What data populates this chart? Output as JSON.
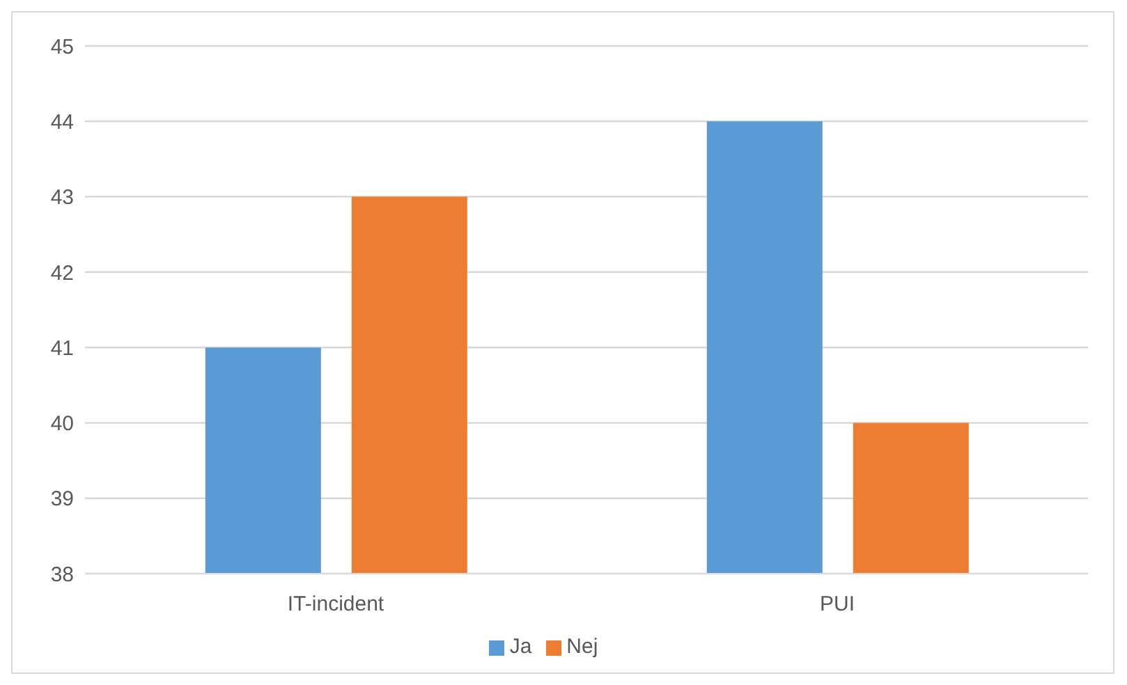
{
  "chart_data": {
    "type": "bar",
    "categories": [
      "IT-incident",
      "PUI"
    ],
    "series": [
      {
        "name": "Ja",
        "color": "#5b9bd5",
        "values": [
          41,
          44
        ]
      },
      {
        "name": "Nej",
        "color": "#ed7d31",
        "values": [
          43,
          40
        ]
      }
    ],
    "ylim": [
      38,
      45
    ],
    "yticks": [
      38,
      39,
      40,
      41,
      42,
      43,
      44,
      45
    ],
    "grid": "y",
    "legend": "bottom"
  }
}
